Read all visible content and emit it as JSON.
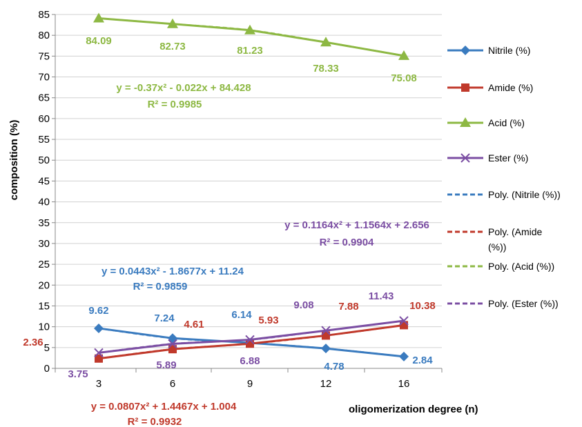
{
  "chart_data": {
    "type": "line",
    "xlabel": "oligomerization degree (n)",
    "ylabel": "composition (%)",
    "x": [
      "3",
      "6",
      "9",
      "12",
      "16"
    ],
    "ylim": [
      0,
      85
    ],
    "yticks": [
      0,
      5,
      10,
      15,
      20,
      25,
      30,
      35,
      40,
      45,
      50,
      55,
      60,
      65,
      70,
      75,
      80,
      85
    ],
    "grid": true,
    "legend": "right",
    "series": [
      {
        "name": "Nitrile (%)",
        "color": "#3a7bbf",
        "marker": "diamond",
        "values": [
          9.62,
          7.24,
          6.14,
          4.78,
          2.84
        ],
        "labels": [
          "9.62",
          "7.24",
          "6.14",
          "4.78",
          "2.84"
        ]
      },
      {
        "name": "Amide (%)",
        "color": "#c0392b",
        "marker": "square",
        "values": [
          2.36,
          4.61,
          5.93,
          7.88,
          10.38
        ],
        "labels": [
          "2.36",
          "4.61",
          "5.93",
          "7.88",
          "10.38"
        ]
      },
      {
        "name": "Acid (%)",
        "color": "#8db843",
        "marker": "triangle",
        "values": [
          84.09,
          82.73,
          81.23,
          78.33,
          75.08
        ],
        "labels": [
          "84.09",
          "82.73",
          "81.23",
          "78.33",
          "75.08"
        ]
      },
      {
        "name": "Ester (%)",
        "color": "#7b4ea3",
        "marker": "x",
        "values": [
          3.75,
          5.89,
          6.88,
          9.08,
          11.43
        ],
        "labels": [
          "3.75",
          "5.89",
          "6.88",
          "9.08",
          "11.43"
        ]
      }
    ],
    "trendlines": [
      {
        "name": "Poly. (Nitrile (%))",
        "color": "#3a7bbf",
        "equation": "y = 0.0443x² - 1.8677x + 11.24",
        "r2": "R² = 0.9859"
      },
      {
        "name": "Poly. (Amide (%))",
        "color": "#c0392b",
        "equation": "y = 0.0807x² + 1.4467x + 1.004",
        "r2": "R² = 0.9932"
      },
      {
        "name": "Poly. (Acid (%))",
        "color": "#8db843",
        "equation": "y = -0.37x² - 0.022x + 84.428",
        "r2": "R² = 0.9985"
      },
      {
        "name": "Poly. (Ester (%))",
        "color": "#7b4ea3",
        "equation": "y = 0.1164x² + 1.1564x + 2.656",
        "r2": "R² = 0.9904"
      }
    ]
  }
}
